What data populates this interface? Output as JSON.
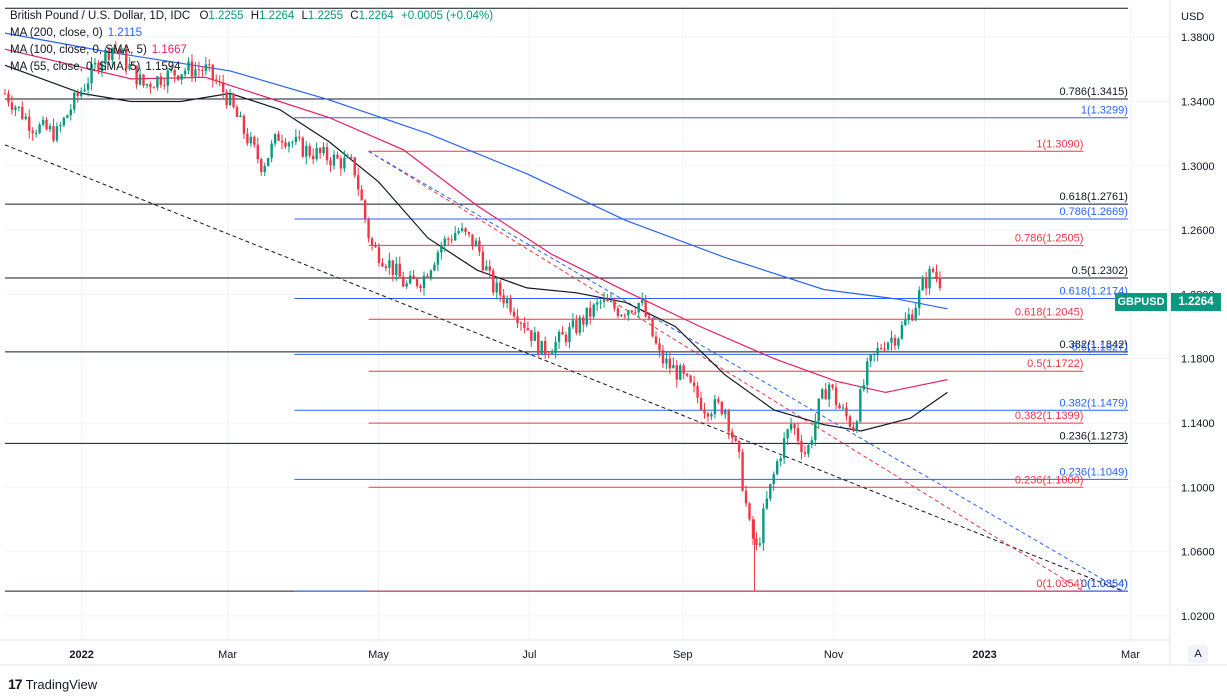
{
  "header": {
    "title": "British Pound / U.S. Dollar, 1D, IDC",
    "open_label": "O",
    "open": "1.2255",
    "high_label": "H",
    "high": "1.2264",
    "low_label": "L",
    "low": "1.2255",
    "close_label": "C",
    "close": "1.2264",
    "change": "+0.0005 (+0.04%)",
    "change_color": "#089981"
  },
  "indicators": [
    {
      "label": "MA (200, close, 0)",
      "value": "1.2115",
      "color": "#2962ff"
    },
    {
      "label": "MA (100, close, 0, SMA, 5)",
      "value": "1.1667",
      "color": "#e91e63"
    },
    {
      "label": "MA (55, close, 0, SMA, 5)",
      "value": "1.1594",
      "color": "#131722"
    }
  ],
  "axis": {
    "currency": "USD",
    "symbol_tag": "GBPUSD",
    "last_price": "1.2264",
    "auto_label": "A"
  },
  "brand": {
    "logo": "17",
    "name": "TradingView"
  },
  "chart_data": {
    "type": "line",
    "y_ticks": [
      "1.3800",
      "1.3400",
      "1.3000",
      "1.2600",
      "1.2200",
      "1.1800",
      "1.1400",
      "1.1000",
      "1.0600",
      "1.0200"
    ],
    "y_tick_values": [
      1.38,
      1.34,
      1.3,
      1.26,
      1.22,
      1.18,
      1.14,
      1.1,
      1.06,
      1.02
    ],
    "x_ticks": [
      "2022",
      "Mar",
      "May",
      "Jul",
      "Sep",
      "Nov",
      "2023",
      "Mar"
    ],
    "x_tick_days": [
      0,
      59,
      120,
      181,
      243,
      304,
      365,
      424
    ],
    "ylim": [
      1.005,
      1.4
    ],
    "xlim_days": [
      -31,
      440
    ],
    "price_path": [
      [
        -31,
        1.345
      ],
      [
        -20,
        1.325
      ],
      [
        -10,
        1.32
      ],
      [
        -3,
        1.34
      ],
      [
        7,
        1.365
      ],
      [
        13,
        1.375
      ],
      [
        20,
        1.36
      ],
      [
        25,
        1.35
      ],
      [
        32,
        1.355
      ],
      [
        42,
        1.36
      ],
      [
        50,
        1.36
      ],
      [
        58,
        1.345
      ],
      [
        66,
        1.32
      ],
      [
        73,
        1.3
      ],
      [
        80,
        1.32
      ],
      [
        90,
        1.31
      ],
      [
        100,
        1.305
      ],
      [
        110,
        1.3
      ],
      [
        117,
        1.25
      ],
      [
        124,
        1.24
      ],
      [
        131,
        1.225
      ],
      [
        138,
        1.23
      ],
      [
        145,
        1.25
      ],
      [
        152,
        1.26
      ],
      [
        160,
        1.25
      ],
      [
        166,
        1.225
      ],
      [
        173,
        1.215
      ],
      [
        180,
        1.2
      ],
      [
        186,
        1.185
      ],
      [
        192,
        1.19
      ],
      [
        200,
        1.2
      ],
      [
        210,
        1.215
      ],
      [
        218,
        1.21
      ],
      [
        226,
        1.215
      ],
      [
        234,
        1.18
      ],
      [
        242,
        1.17
      ],
      [
        252,
        1.15
      ],
      [
        260,
        1.15
      ],
      [
        266,
        1.115
      ],
      [
        270,
        1.075
      ],
      [
        273,
        1.06
      ],
      [
        276,
        1.085
      ],
      [
        282,
        1.12
      ],
      [
        287,
        1.14
      ],
      [
        293,
        1.12
      ],
      [
        298,
        1.15
      ],
      [
        302,
        1.165
      ],
      [
        306,
        1.15
      ],
      [
        312,
        1.138
      ],
      [
        318,
        1.175
      ],
      [
        324,
        1.19
      ],
      [
        330,
        1.195
      ],
      [
        336,
        1.21
      ],
      [
        340,
        1.225
      ],
      [
        344,
        1.235
      ],
      [
        348,
        1.226
      ]
    ],
    "ma200": [
      [
        -31,
        1.3825
      ],
      [
        10,
        1.371
      ],
      [
        60,
        1.359
      ],
      [
        100,
        1.341
      ],
      [
        140,
        1.32
      ],
      [
        180,
        1.295
      ],
      [
        220,
        1.266
      ],
      [
        260,
        1.243
      ],
      [
        300,
        1.223
      ],
      [
        330,
        1.217
      ],
      [
        350,
        1.211
      ]
    ],
    "ma100": [
      [
        -31,
        1.3725
      ],
      [
        20,
        1.354
      ],
      [
        50,
        1.355
      ],
      [
        80,
        1.34
      ],
      [
        100,
        1.33
      ],
      [
        130,
        1.31
      ],
      [
        160,
        1.275
      ],
      [
        190,
        1.245
      ],
      [
        220,
        1.222
      ],
      [
        250,
        1.2
      ],
      [
        280,
        1.18
      ],
      [
        305,
        1.166
      ],
      [
        325,
        1.159
      ],
      [
        350,
        1.167
      ]
    ],
    "ma55": [
      [
        -31,
        1.3625
      ],
      [
        0,
        1.345
      ],
      [
        20,
        1.34
      ],
      [
        40,
        1.34
      ],
      [
        60,
        1.345
      ],
      [
        80,
        1.335
      ],
      [
        100,
        1.315
      ],
      [
        120,
        1.29
      ],
      [
        140,
        1.255
      ],
      [
        160,
        1.235
      ],
      [
        180,
        1.224
      ],
      [
        200,
        1.221
      ],
      [
        220,
        1.215
      ],
      [
        240,
        1.2
      ],
      [
        260,
        1.17
      ],
      [
        280,
        1.148
      ],
      [
        300,
        1.139
      ],
      [
        315,
        1.135
      ],
      [
        335,
        1.143
      ],
      [
        350,
        1.159
      ]
    ],
    "fib_sets": [
      {
        "color": "#131722",
        "start_day": -31,
        "end_day": 423,
        "levels": [
          {
            "label": "0.786(1.3415)",
            "value": 1.3415
          },
          {
            "label": "0.618(1.2761)",
            "value": 1.2761
          },
          {
            "label": "0.5(1.2302)",
            "value": 1.2302
          },
          {
            "label": "0.382(1.1842)",
            "value": 1.1842
          },
          {
            "label": "0.236(1.1273)",
            "value": 1.1273
          },
          {
            "label": "0(1.0354)",
            "value": 1.0354
          }
        ]
      },
      {
        "color": "#2962ff",
        "start_day": 86,
        "end_day": 423,
        "levels": [
          {
            "label": "1(1.3299)",
            "value": 1.3299
          },
          {
            "label": "0.786(1.2669)",
            "value": 1.2669
          },
          {
            "label": "0.618(1.2174)",
            "value": 1.2174
          },
          {
            "label": "0.5(1.1827)",
            "value": 1.1827
          },
          {
            "label": "0.382(1.1479)",
            "value": 1.1479
          },
          {
            "label": "0.236(1.1049)",
            "value": 1.1049
          },
          {
            "label": "0(1.0354)",
            "value": 1.0354
          }
        ]
      },
      {
        "color": "#f23645",
        "start_day": 116,
        "end_day": 405,
        "levels": [
          {
            "label": "1(1.3090)",
            "value": 1.309
          },
          {
            "label": "0.786(1.2505)",
            "value": 1.2505
          },
          {
            "label": "0.618(1.2045)",
            "value": 1.2045
          },
          {
            "label": "0.5(1.1722)",
            "value": 1.1722
          },
          {
            "label": "0.382(1.1399)",
            "value": 1.1399
          },
          {
            "label": "0.236(1.1000)",
            "value": 1.1
          },
          {
            "label": "0(1.0354)",
            "value": 1.0354
          }
        ]
      }
    ],
    "trend_lines": [
      {
        "color": "#131722",
        "from": [
          -31,
          1.313
        ],
        "to": [
          421,
          1.0354
        ]
      },
      {
        "color": "#f23645",
        "from": [
          116,
          1.309
        ],
        "to": [
          405,
          1.0354
        ]
      },
      {
        "color": "#2962ff",
        "from": [
          116,
          1.309
        ],
        "to": [
          421,
          1.0354
        ]
      }
    ],
    "top_line": {
      "color": "#131722",
      "value": 1.398
    }
  }
}
